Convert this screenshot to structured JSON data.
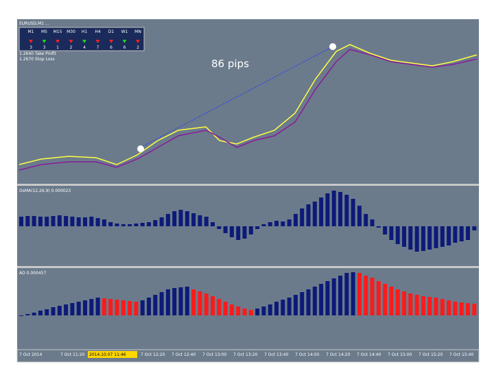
{
  "symbol_info": [
    "EURUSD,M1 ...",
    "1.2640 Take Profit",
    "1.2670 Stop Loss"
  ],
  "timeframes": {
    "names": [
      "M1",
      "M5",
      "M15",
      "M30",
      "H1",
      "H4",
      "D1",
      "W1",
      "MN"
    ],
    "counts": [
      "3",
      "3",
      "1",
      "2",
      "4",
      "7",
      "6",
      "6",
      "2"
    ]
  },
  "annotation": "86 pips",
  "osma": {
    "label": "OsMA(12,26,9) 0.000023",
    "color": "#0d1a78",
    "values": [
      14,
      15,
      15,
      14,
      14,
      15,
      16,
      15,
      14,
      13,
      13,
      14,
      12,
      10,
      6,
      4,
      3,
      3,
      4,
      5,
      6,
      9,
      13,
      18,
      22,
      24,
      22,
      19,
      16,
      14,
      6,
      -4,
      -10,
      -16,
      -20,
      -18,
      -12,
      -4,
      3,
      6,
      8,
      7,
      10,
      18,
      26,
      32,
      36,
      42,
      48,
      52,
      50,
      46,
      40,
      30,
      18,
      10,
      -2,
      -12,
      -20,
      -26,
      -30,
      -34,
      -37,
      -36,
      -34,
      -32,
      -30,
      -28,
      -24,
      -22,
      -20,
      -6
    ]
  },
  "ao": {
    "label": "AO 0.000457",
    "up_color": "#0d1a78",
    "down_color": "#ff1a1a",
    "values": [
      0,
      2,
      4,
      7,
      9,
      12,
      14,
      16,
      18,
      20,
      22,
      24,
      26,
      25,
      24,
      23,
      22,
      21,
      20,
      22,
      26,
      30,
      34,
      38,
      40,
      41,
      42,
      38,
      35,
      32,
      28,
      24,
      20,
      16,
      13,
      10,
      8,
      10,
      13,
      16,
      20,
      23,
      26,
      30,
      34,
      38,
      42,
      46,
      50,
      54,
      58,
      62,
      63,
      62,
      58,
      55,
      50,
      46,
      42,
      38,
      35,
      32,
      30,
      28,
      27,
      26,
      24,
      22,
      20,
      19,
      18,
      17
    ]
  },
  "time_axis": {
    "labels": [
      "7 Oct 2014",
      "7 Oct 11:20",
      "7 Oct 12:20",
      "7 Oct 12:40",
      "7 Oct 13:00",
      "7 Oct 13:20",
      "7 Oct 13:40",
      "7 Oct 14:00",
      "7 Oct 14:20",
      "7 Oct 14:40",
      "7 Oct 15:00",
      "7 Oct 15:20",
      "7 Oct 15:40"
    ],
    "highlight": "2014.10.07 11:46"
  }
}
